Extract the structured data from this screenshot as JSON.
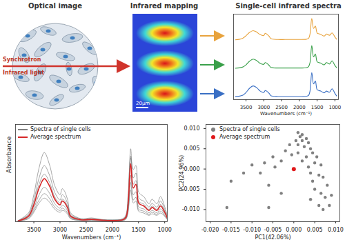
{
  "diagram": {
    "panels": [
      {
        "title": "Optical image",
        "beam_label": [
          "Synchrotron",
          "Infrared light"
        ]
      },
      {
        "title": "Infrared mapping",
        "scale_bar": "20μm"
      }
    ]
  },
  "chart_data": [
    {
      "type": "line",
      "title": "Single-cell infrared spectra",
      "x_label": "Wavenumbers (cm⁻¹)",
      "x": [
        3800,
        3600,
        3500,
        3400,
        3300,
        3200,
        3100,
        3000,
        2960,
        2920,
        2850,
        2800,
        2600,
        2400,
        2200,
        2000,
        1800,
        1740,
        1700,
        1650,
        1600,
        1550,
        1500,
        1450,
        1400,
        1300,
        1240,
        1150,
        1080,
        1000,
        950
      ],
      "xlim": [
        3850,
        900
      ],
      "xticks": [
        3500,
        3000,
        2500,
        2000,
        1500,
        1000
      ],
      "ylim": [
        0,
        3
      ],
      "yticks": [],
      "tick_labels": "x",
      "series": [
        {
          "color": "#e8a33d",
          "values": [
            2.1,
            2.15,
            2.24,
            2.36,
            2.42,
            2.37,
            2.28,
            2.25,
            2.33,
            2.3,
            2.22,
            2.14,
            2.11,
            2.11,
            2.11,
            2.11,
            2.12,
            2.15,
            2.3,
            2.85,
            2.5,
            2.58,
            2.34,
            2.31,
            2.29,
            2.23,
            2.3,
            2.26,
            2.34,
            2.2,
            2.12
          ]
        },
        {
          "color": "#3aa04a",
          "values": [
            1.1,
            1.14,
            1.22,
            1.35,
            1.42,
            1.37,
            1.27,
            1.24,
            1.3,
            1.28,
            1.2,
            1.13,
            1.11,
            1.11,
            1.11,
            1.11,
            1.12,
            1.16,
            1.3,
            1.9,
            1.5,
            1.6,
            1.33,
            1.3,
            1.28,
            1.22,
            1.3,
            1.25,
            1.36,
            1.2,
            1.12
          ]
        },
        {
          "color": "#3a6fc4",
          "values": [
            0.1,
            0.15,
            0.25,
            0.4,
            0.48,
            0.42,
            0.3,
            0.25,
            0.32,
            0.3,
            0.22,
            0.14,
            0.11,
            0.11,
            0.11,
            0.11,
            0.12,
            0.15,
            0.3,
            0.95,
            0.55,
            0.65,
            0.35,
            0.32,
            0.3,
            0.24,
            0.3,
            0.26,
            0.38,
            0.22,
            0.13
          ]
        }
      ]
    },
    {
      "type": "line",
      "x_label": "Wavenumbers (cm⁻¹)",
      "y_label": "Absorbance",
      "x": [
        3800,
        3600,
        3500,
        3400,
        3300,
        3200,
        3100,
        3000,
        2960,
        2920,
        2850,
        2800,
        2600,
        2400,
        2200,
        2000,
        1800,
        1740,
        1700,
        1650,
        1600,
        1550,
        1500,
        1450,
        1400,
        1300,
        1240,
        1150,
        1080,
        1000,
        950
      ],
      "xlim": [
        3850,
        950
      ],
      "xticks": [
        3500,
        3000,
        2500,
        2000,
        1500,
        1000
      ],
      "ylim": [
        0,
        2.6
      ],
      "yticks": [],
      "tick_labels": "x",
      "legend": "top-left",
      "series": [
        {
          "name": "Spectra of single cells",
          "color": "#7f7f7f",
          "values": [
            [
              0.01,
              0.08,
              0.25,
              0.5,
              0.63,
              0.52,
              0.33,
              0.25,
              0.3,
              0.29,
              0.19,
              0.08,
              0.03,
              0.03,
              0.02,
              0.02,
              0.03,
              0.07,
              0.25,
              0.85,
              0.5,
              0.55,
              0.28,
              0.25,
              0.23,
              0.17,
              0.21,
              0.17,
              0.23,
              0.14,
              0.05
            ],
            [
              0.02,
              0.12,
              0.36,
              0.72,
              0.92,
              0.76,
              0.48,
              0.36,
              0.44,
              0.42,
              0.28,
              0.12,
              0.04,
              0.05,
              0.03,
              0.02,
              0.04,
              0.1,
              0.36,
              1.24,
              0.72,
              0.8,
              0.4,
              0.36,
              0.34,
              0.24,
              0.3,
              0.24,
              0.34,
              0.2,
              0.08
            ],
            [
              0.03,
              0.2,
              0.58,
              1.17,
              1.5,
              1.24,
              0.78,
              0.58,
              0.72,
              0.68,
              0.46,
              0.2,
              0.07,
              0.08,
              0.05,
              0.04,
              0.07,
              0.16,
              0.58,
              1.95,
              1.17,
              1.3,
              0.65,
              0.58,
              0.55,
              0.39,
              0.49,
              0.39,
              0.55,
              0.33,
              0.13
            ],
            [
              0.03,
              0.24,
              0.72,
              1.44,
              1.85,
              1.52,
              0.96,
              0.72,
              0.88,
              0.83,
              0.56,
              0.24,
              0.08,
              0.1,
              0.06,
              0.05,
              0.08,
              0.19,
              0.7,
              1.7,
              1.4,
              1.5,
              0.8,
              0.72,
              0.67,
              0.48,
              0.6,
              0.48,
              0.67,
              0.4,
              0.16
            ],
            [
              0.02,
              0.17,
              0.5,
              1.0,
              1.27,
              1.05,
              0.66,
              0.5,
              0.6,
              0.57,
              0.39,
              0.17,
              0.06,
              0.07,
              0.04,
              0.03,
              0.06,
              0.13,
              0.5,
              1.75,
              1.0,
              1.1,
              0.55,
              0.5,
              0.47,
              0.33,
              0.42,
              0.33,
              0.46,
              0.28,
              0.11
            ],
            [
              0.01,
              0.1,
              0.3,
              0.58,
              0.75,
              0.62,
              0.39,
              0.3,
              0.36,
              0.34,
              0.23,
              0.1,
              0.03,
              0.04,
              0.03,
              0.02,
              0.03,
              0.08,
              0.3,
              1.05,
              0.58,
              0.65,
              0.33,
              0.3,
              0.28,
              0.2,
              0.25,
              0.2,
              0.28,
              0.16,
              0.07
            ]
          ]
        },
        {
          "name": "Average spectrum",
          "color": "#d62728",
          "values": [
            0.02,
            0.15,
            0.45,
            0.9,
            1.15,
            0.95,
            0.6,
            0.45,
            0.55,
            0.52,
            0.35,
            0.15,
            0.05,
            0.06,
            0.04,
            0.03,
            0.05,
            0.12,
            0.45,
            1.55,
            0.9,
            1.0,
            0.5,
            0.45,
            0.42,
            0.3,
            0.38,
            0.3,
            0.42,
            0.25,
            0.1
          ]
        }
      ]
    },
    {
      "type": "scatter",
      "x_label": "PC1(42.06%)",
      "y_label": "PC2(24.96%)",
      "xlim": [
        -0.021,
        0.011
      ],
      "xticks": [
        {
          "value": -0.02,
          "label": "-0.020"
        },
        -0.015,
        {
          "value": -0.01,
          "label": "-0.010"
        },
        -0.005,
        {
          "value": 0,
          "label": "0.000"
        },
        0.005,
        {
          "value": 0.01,
          "label": "0.010"
        }
      ],
      "ylim": [
        -0.013,
        0.011
      ],
      "yticks": [
        {
          "value": -0.01,
          "label": "-0.010"
        },
        -0.005,
        {
          "value": 0,
          "label": "0.000"
        },
        0.005,
        {
          "value": 0.01,
          "label": "0.010"
        }
      ],
      "legend": "top-left",
      "series": [
        {
          "name": "Spectra of single cells",
          "color": "#808080",
          "marker": "circle",
          "x": [
            0.001,
            0.002,
            0.0015,
            0.003,
            0.0005,
            0.002,
            0.0035,
            0.001,
            -0.001,
            0.0025,
            0.004,
            -0.002,
            0.001,
            0.0045,
            -0.0005,
            0.003,
            0.0055,
            -0.005,
            -0.003,
            0.002,
            0.005,
            -0.007,
            0.0065,
            -0.0045,
            0.0035,
            -0.01,
            0.004,
            0.006,
            -0.008,
            -0.012,
            0.0045,
            0.007,
            -0.006,
            -0.015,
            0.005,
            0.008,
            0.0065,
            -0.003,
            -0.016,
            0.0075,
            0.004,
            0.009,
            -0.006,
            0.006,
            0.007,
            0.0085
          ],
          "y": [
            0.009,
            0.0085,
            0.008,
            0.0075,
            0.007,
            0.007,
            0.0065,
            0.006,
            0.006,
            0.0055,
            0.005,
            0.0045,
            0.004,
            0.004,
            0.0035,
            0.003,
            0.003,
            0.003,
            0.002,
            0.002,
            0.0015,
            0.0015,
            0.001,
            0.0005,
            0.0005,
            0.001,
            -0.001,
            -0.0015,
            -0.001,
            -0.001,
            -0.003,
            -0.002,
            -0.004,
            -0.003,
            -0.005,
            -0.004,
            -0.006,
            -0.006,
            -0.0095,
            -0.007,
            -0.0075,
            -0.0065,
            -0.0095,
            -0.009,
            -0.01,
            -0.009
          ]
        },
        {
          "name": "Average spectrum",
          "color": "#e0191b",
          "marker": "circle",
          "x": [
            0
          ],
          "y": [
            0
          ]
        }
      ]
    }
  ]
}
